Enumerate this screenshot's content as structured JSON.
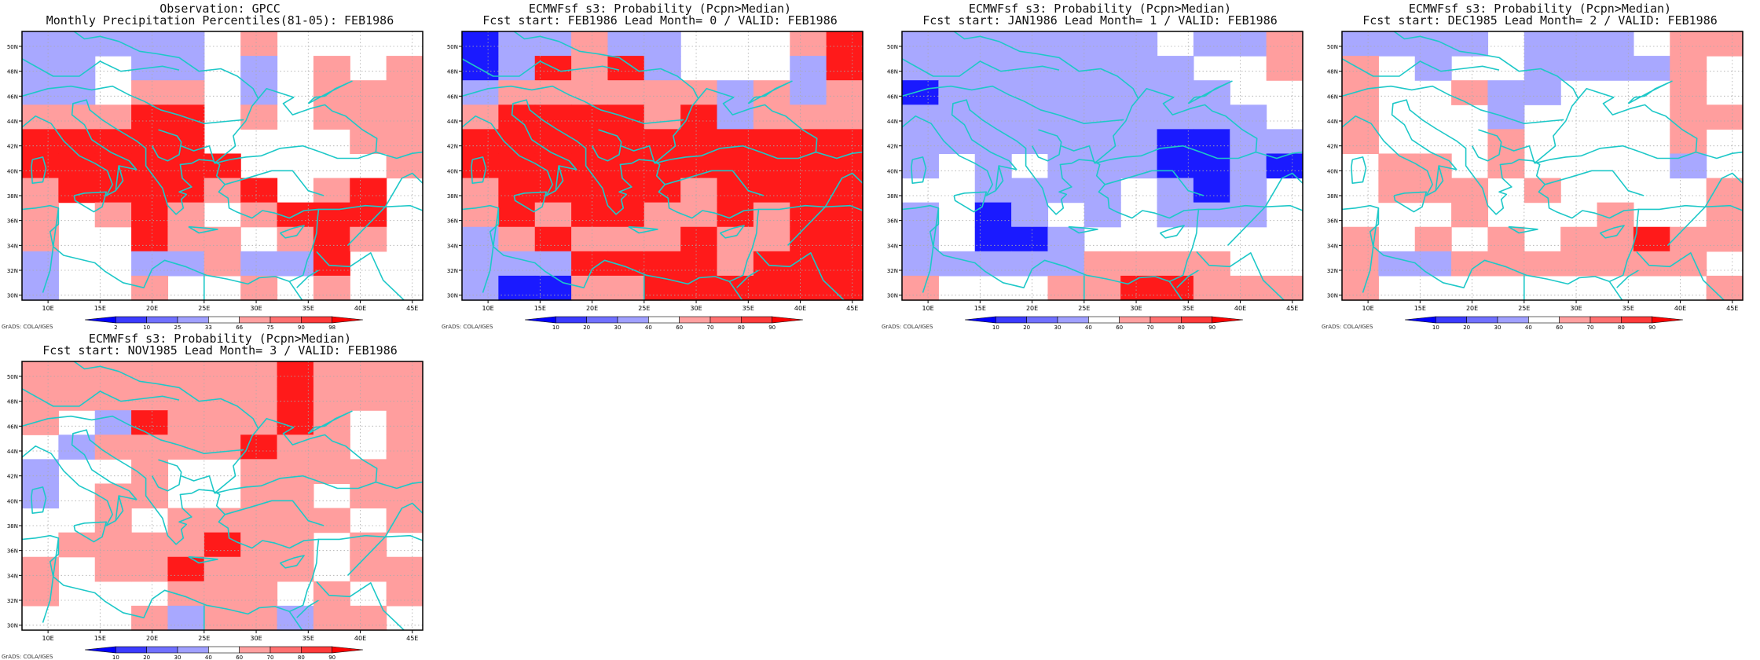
{
  "panels": [
    {
      "id": "obs",
      "title_line1": "Observation: GPCC",
      "title_line2": "Monthly Precipitation Percentiles(81-05): FEB1986",
      "colorbar_labels": [
        "2",
        "10",
        "25",
        "33",
        "66",
        "75",
        "90",
        "98"
      ],
      "grid": [
        "bbbbb.r....",
        "bb.bb.b.r.r",
        "bb.rr.b.rrr",
        "rrrRR.r.rrr",
        "RRRRR....rr",
        "RRRRRR....r",
        "rRRRRrR.rR.",
        "r.rRr.rRRR.",
        "r..Rrr.rRr.",
        "b..bbrbbR..",
        "b..r..r.r.."
      ],
      "footer": "GrADS: COLA/IGES"
    },
    {
      "id": "lead0",
      "title_line1": "ECMWFsf s3: Probability (Pcpn>Median)",
      "title_line2": "Fcst start: FEB1986  Lead Month= 0 / VALID: FEB1986",
      "colorbar_labels": [
        "10",
        "20",
        "30",
        "40",
        "60",
        "70",
        "80",
        "90"
      ],
      "grid": [
        "Bbbrbb...rR",
        "BbRrRb...bR",
        "brrrrrrbrbr",
        "rRRRRrRbrrr",
        "RRRRRRRRRRR",
        "RRRRRRRRRRR",
        "rRRRRRrRRRR",
        "rRrRRrrRrRR",
        "brRrrrRrrRR",
        "bbbRRRRrRRR",
        "bBBrrRRRRRR"
      ],
      "footer": "GrADS: COLA/IGES"
    },
    {
      "id": "lead1",
      "title_line1": "ECMWFsf s3: Probability (Pcpn>Median)",
      "title_line2": "Fcst start: JAN1986  Lead Month= 1 / VALID: FEB1986",
      "colorbar_labels": [
        "10",
        "20",
        "30",
        "40",
        "60",
        "70",
        "80",
        "90"
      ],
      "grid": [
        "bbbbbbb.bbr",
        "bbbbbbbb..r",
        "Bbbbbbbbb..",
        "bbbbbbbbbb.",
        "bbbbbbbBBbb",
        "b.b.bbbBBbB",
        "..bbbb.bBb.",
        "b.Bb.b.bbb.",
        "b.BBb......",
        "bbbbbrrrr..",
        "r...rrRRrrr"
      ],
      "footer": "GrADS: COLA/IGES"
    },
    {
      "id": "lead2",
      "title_line1": "ECMWFsf s3: Probability (Pcpn>Median)",
      "title_line2": "Fcst start: DEC1985  Lead Month= 2 / VALID: FEB1986",
      "colorbar_labels": [
        "10",
        "20",
        "30",
        "40",
        "60",
        "70",
        "80",
        "90"
      ],
      "grid": [
        "bbbb.bbb.rr",
        "r.b..bbbbr.",
        "r..rbb...r.",
        "r...b....rr",
        "r...r....r.",
        ".rr.r....b.",
        ".rrr.r....r",
        "...r...r..r",
        "r.r.r.rrRrr",
        "rbbrrrrrrr.",
        "r.........r"
      ],
      "footer": "GrADS: COLA/IGES"
    },
    {
      "id": "lead3",
      "title_line1": "ECMWFsf s3: Probability (Pcpn>Median)",
      "title_line2": "Fcst start: NOV1985  Lead Month= 3 / VALID: FEB1986",
      "colorbar_labels": [
        "10",
        "20",
        "30",
        "40",
        "60",
        "70",
        "80",
        "90"
      ],
      "grid": [
        "rrrrrrrRrrr",
        "rrrrrrrRrrr",
        "r.bRrrrRr.r",
        ".brrrrRrr.r",
        "b..r..rrrrr",
        "b.rr..rr.rr",
        "..r.rrrrr.r",
        ".rrrrRrr.r.",
        "r.rrRrrr.rr",
        "r...rrr.r.r",
        "...rbrrbrr."
      ],
      "footer": "GrADS: COLA/IGES"
    }
  ],
  "axes": {
    "lon_labels": [
      "10E",
      "15E",
      "20E",
      "25E",
      "30E",
      "35E",
      "40E",
      "45E"
    ],
    "lat_labels": [
      "30N",
      "32N",
      "34N",
      "36N",
      "38N",
      "40N",
      "42N",
      "44N",
      "46N",
      "48N",
      "50N"
    ]
  },
  "colors": {
    "B": "#1a1aff",
    "b": "#a8a8ff",
    "r": "#ff9e9e",
    "R": "#ff1a1a",
    "coast": "#1ec8c8",
    "grid": "#aaaaaa"
  },
  "colorbar_colors": [
    "#0000ff",
    "#3b3bff",
    "#7070ff",
    "#a0a0ff",
    "#ffffff",
    "#ffa0a0",
    "#ff7070",
    "#ff3b3b",
    "#ff0000"
  ]
}
